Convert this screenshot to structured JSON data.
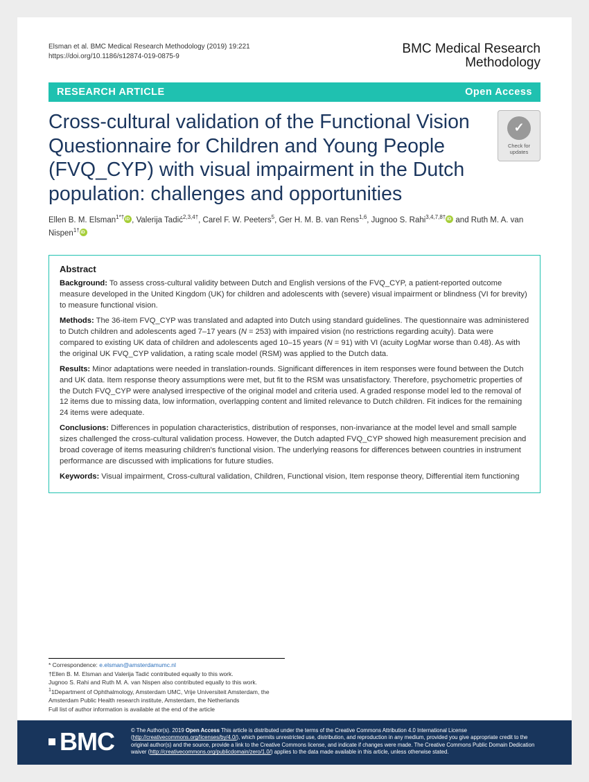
{
  "header": {
    "citation": "Elsman et al. BMC Medical Research Methodology        (2019) 19:221",
    "doi": "https://doi.org/10.1186/s12874-019-0875-9",
    "journal_l1": "BMC Medical Research",
    "journal_l2": "Methodology"
  },
  "banner": {
    "left": "RESEARCH ARTICLE",
    "right": "Open Access"
  },
  "title": "Cross-cultural validation of the Functional Vision Questionnaire for Children and Young People (FVQ_CYP) with visual impairment in the Dutch population: challenges and opportunities",
  "crossmark": {
    "label": "Check for updates"
  },
  "authors": {
    "a1_name": "Ellen B. M. Elsman",
    "a1_aff": "1*†",
    "a2_name": "Valerija Tadić",
    "a2_aff": "2,3,4†",
    "a3_name": "Carel F. W. Peeters",
    "a3_aff": "5",
    "a4_name": "Ger H. M. B. van Rens",
    "a4_aff": "1,6",
    "a5_name": "Jugnoo S. Rahi",
    "a5_aff": "3,4,7,8†",
    "a6_name": "Ruth M. A. van Nispen",
    "a6_aff": "1†"
  },
  "abstract": {
    "heading": "Abstract",
    "bg_label": "Background:",
    "bg_text": " To assess cross-cultural validity between Dutch and English versions of the FVQ_CYP, a patient-reported outcome measure developed in the United Kingdom (UK) for children and adolescents with (severe) visual impairment or blindness (VI for brevity) to measure functional vision.",
    "me_label": "Methods:",
    "me_text_a": " The 36-item FVQ_CYP was translated and adapted into Dutch using standard guidelines. The questionnaire was administered to Dutch children and adolescents aged 7–17 years (",
    "me_n1": "N",
    "me_text_b": " = 253) with impaired vision (no restrictions regarding acuity). Data were compared to existing UK data of children and adolescents aged 10–15 years (",
    "me_n2": "N",
    "me_text_c": " = 91) with VI (acuity LogMar worse than 0.48). As with the original UK FVQ_CYP validation, a rating scale model (RSM) was applied to the Dutch data.",
    "re_label": "Results:",
    "re_text": " Minor adaptations were needed in translation-rounds. Significant differences in item responses were found between the Dutch and UK data. Item response theory assumptions were met, but fit to the RSM was unsatisfactory. Therefore, psychometric properties of the Dutch FVQ_CYP were analysed irrespective of the original model and criteria used. A graded response model led to the removal of 12 items due to missing data, low information, overlapping content and limited relevance to Dutch children. Fit indices for the remaining 24 items were adequate.",
    "co_label": "Conclusions:",
    "co_text": " Differences in population characteristics, distribution of responses, non-invariance at the model level and small sample sizes challenged the cross-cultural validation process. However, the Dutch adapted FVQ_CYP showed high measurement precision and broad coverage of items measuring children's functional vision. The underlying reasons for differences between countries in instrument performance are discussed with implications for future studies.",
    "kw_label": "Keywords:",
    "kw_text": " Visual impairment, Cross-cultural validation, Children, Functional vision, Item response theory, Differential item functioning"
  },
  "footnotes": {
    "corr_label": "* Correspondence: ",
    "corr_email": "e.elsman@amsterdamumc.nl",
    "note1": "†Ellen B. M. Elsman and Valerija Tadić contributed equally to this work.",
    "note2": "Jugnoo S. Rahi and Ruth M. A. van Nispen also contributed equally to this work.",
    "aff1": "1Department of Ophthalmology, Amsterdam UMC, Vrije Universiteit Amsterdam, the Amsterdam Public Health research institute, Amsterdam, the Netherlands",
    "listnote": "Full list of author information is available at the end of the article"
  },
  "footer": {
    "logo": "BMC",
    "license_a": "© The Author(s). 2019 ",
    "license_oa": "Open Access",
    "license_b": " This article is distributed under the terms of the Creative Commons Attribution 4.0 International License (",
    "license_url1": "http://creativecommons.org/licenses/by/4.0/",
    "license_c": "), which permits unrestricted use, distribution, and reproduction in any medium, provided you give appropriate credit to the original author(s) and the source, provide a link to the Creative Commons license, and indicate if changes were made. The Creative Commons Public Domain Dedication waiver (",
    "license_url2": "http://creativecommons.org/publicdomain/zero/1.0/",
    "license_d": ") applies to the data made available in this article, unless otherwise stated."
  }
}
